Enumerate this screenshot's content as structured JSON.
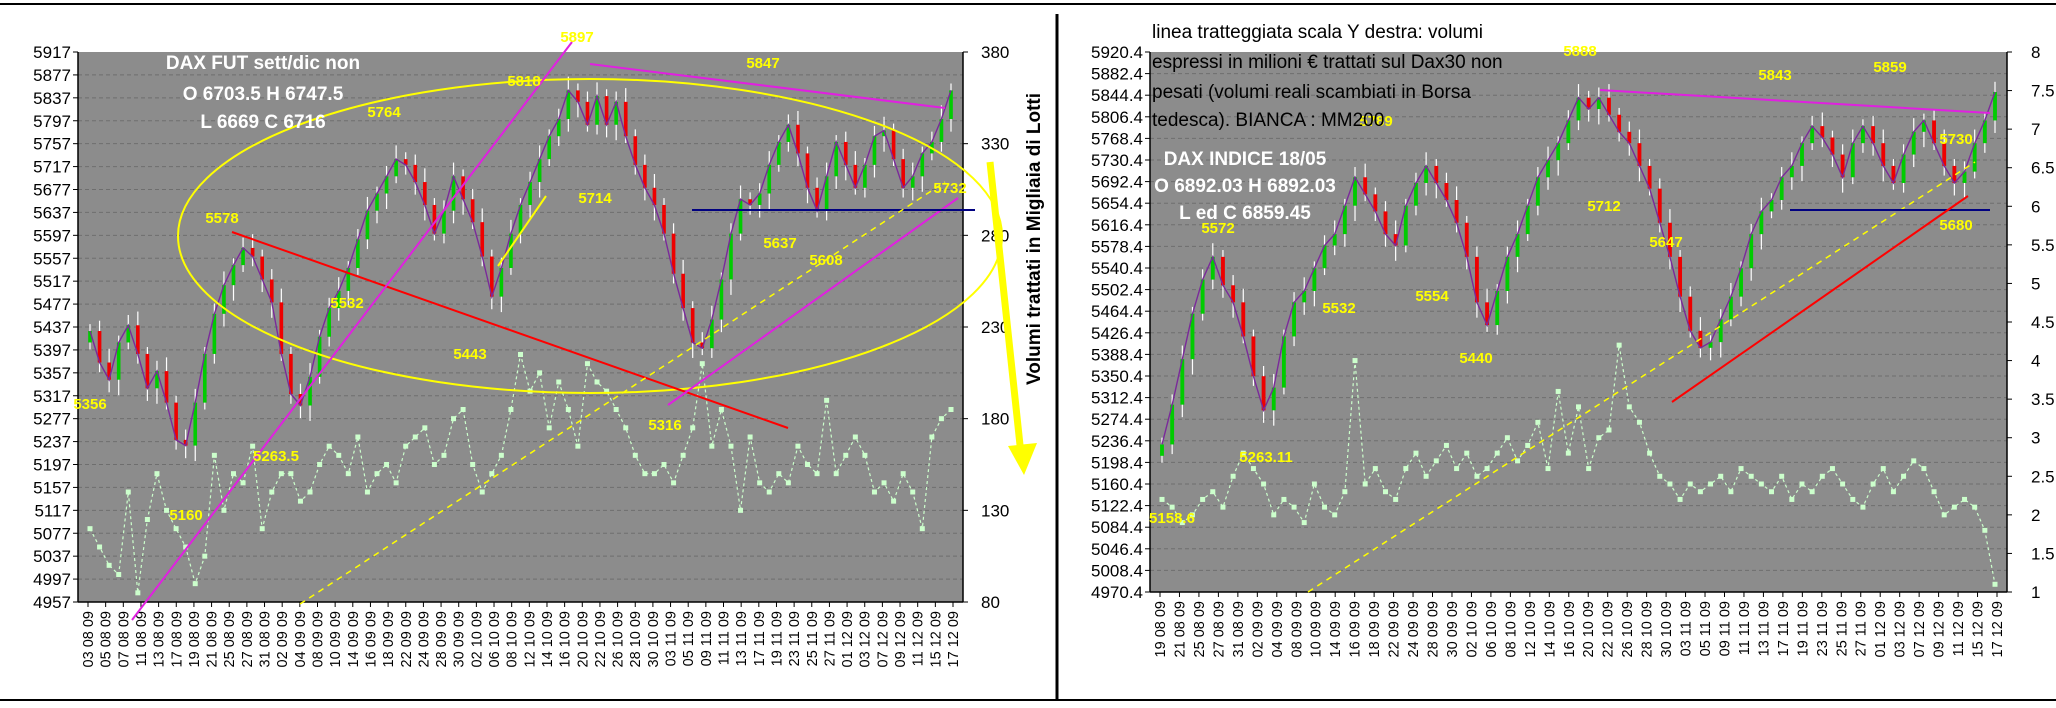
{
  "colors": {
    "plot_bg": "#8c8c8c",
    "up_candle": "#00cc00",
    "down_candle": "#ee0000",
    "wick": "#ffffff",
    "volume": "#ccffcc",
    "annotation": "#ffff00",
    "trend_red": "#ff0000",
    "trend_magenta": "#e020e0",
    "support_navy": "#000080",
    "ellipse": "#ffff00"
  },
  "left": {
    "info_lines": [
      "DAX FUT sett/dic non",
      "O 6703.5 H 6747.5",
      "L 6669  C 6716"
    ],
    "right_axis_label": "Volumi trattati in Migliaia di Lotti",
    "yticks": [
      "5917",
      "5877",
      "5837",
      "5797",
      "5757",
      "5717",
      "5677",
      "5637",
      "5597",
      "5557",
      "5517",
      "5477",
      "5437",
      "5397",
      "5357",
      "5317",
      "5277",
      "5237",
      "5197",
      "5157",
      "5117",
      "5077",
      "5037",
      "4997",
      "4957"
    ],
    "rticks": [
      "380",
      "330",
      "280",
      "230",
      "180",
      "130",
      "80"
    ],
    "xticks": [
      "03 08 09",
      "05 08 09",
      "07 08 09",
      "11 08 09",
      "13 08 09",
      "17 08 09",
      "19 08 09",
      "21 08 09",
      "25 08 09",
      "27 08 09",
      "31 08 09",
      "02 09 09",
      "04 09 09",
      "08 09 09",
      "10 09 09",
      "14 09 09",
      "16 09 09",
      "18 09 09",
      "22 09 09",
      "24 09 09",
      "28 09 09",
      "30 09 09",
      "02 10 09",
      "06 10 09",
      "08 10 09",
      "12 10 09",
      "14 10 09",
      "16 10 09",
      "20 10 09",
      "22 10 09",
      "26 10 09",
      "28 10 09",
      "30 10 09",
      "03 11 09",
      "05 11 09",
      "09 11 09",
      "11 11 09",
      "13 11 09",
      "17 11 09",
      "19 11 09",
      "23 11 09",
      "25 11 09",
      "27 11 09",
      "01 12 09",
      "03 12 09",
      "07 12 09",
      "09 12 09",
      "11 12 09",
      "15 12 09",
      "17 12 09"
    ],
    "annotations": [
      "5897",
      "5818",
      "5764",
      "5578",
      "5532",
      "5443",
      "5356",
      "5160",
      "5263.5",
      "5714",
      "5316",
      "5847",
      "5637",
      "5608",
      "5732"
    ]
  },
  "right": {
    "note_lines": [
      "linea tratteggiata scala Y destra: volumi",
      "espressi in milioni €  trattati sul Dax30 non",
      "pesati (volumi reali scambiati in Borsa",
      "tedesca). BIANCA : MM200"
    ],
    "info_lines": [
      "DAX INDICE 18/05",
      "O 6892.03 H 6892.03",
      "L ed C 6859.45"
    ],
    "yticks": [
      "5920.4",
      "5882.4",
      "5844.4",
      "5806.4",
      "5768.4",
      "5730.4",
      "5692.4",
      "5654.4",
      "5616.4",
      "5578.4",
      "5540.4",
      "5502.4",
      "5464.4",
      "5426.4",
      "5388.4",
      "5350.4",
      "5312.4",
      "5274.4",
      "5236.4",
      "5198.4",
      "5160.4",
      "5122.4",
      "5084.4",
      "5046.4",
      "5008.4",
      "4970.4"
    ],
    "rticks": [
      "8",
      "7.5",
      "7",
      "6.5",
      "6",
      "5.5",
      "5",
      "4.5",
      "4",
      "3.5",
      "3",
      "2.5",
      "2",
      "1.5",
      "1"
    ],
    "xticks": [
      "19 08 09",
      "21 08 09",
      "25 08 09",
      "27 08 09",
      "31 08 09",
      "02 09 09",
      "04 09 09",
      "08 09 09",
      "10 09 09",
      "14 09 09",
      "16 09 09",
      "18 09 09",
      "22 09 09",
      "24 09 09",
      "28 09 09",
      "30 09 09",
      "02 10 09",
      "06 10 09",
      "08 10 09",
      "12 10 09",
      "14 10 09",
      "16 10 09",
      "20 10 09",
      "22 10 09",
      "26 10 09",
      "28 10 09",
      "30 10 09",
      "03 11 09",
      "05 11 09",
      "09 11 09",
      "11 11 09",
      "13 11 09",
      "17 11 09",
      "19 11 09",
      "23 11 09",
      "25 11 09",
      "27 11 09",
      "01 12 09",
      "03 12 09",
      "07 12 09",
      "09 12 09",
      "11 12 09",
      "15 12 09",
      "17 12 09"
    ],
    "annotations": [
      "5888",
      "5843",
      "5859",
      "5789",
      "5730",
      "5712",
      "5647",
      "5680",
      "5572",
      "5554",
      "5532",
      "5440",
      "5263.11",
      "5158.6"
    ]
  },
  "chart_data": [
    {
      "type": "candlestick",
      "title": "DAX FUT sett/dic non",
      "ylabel_right": "Volumi trattati in Migliaia di Lotti",
      "ylim": [
        4957,
        5917
      ],
      "ylim_right": [
        80,
        380
      ],
      "close": [
        5430,
        5375,
        5345,
        5410,
        5440,
        5390,
        5330,
        5360,
        5305,
        5240,
        5230,
        5305,
        5390,
        5460,
        5510,
        5545,
        5575,
        5560,
        5520,
        5480,
        5390,
        5320,
        5300,
        5350,
        5420,
        5470,
        5500,
        5540,
        5590,
        5640,
        5670,
        5700,
        5730,
        5720,
        5690,
        5650,
        5600,
        5640,
        5700,
        5660,
        5620,
        5560,
        5490,
        5540,
        5600,
        5650,
        5690,
        5730,
        5770,
        5800,
        5850,
        5830,
        5790,
        5840,
        5790,
        5830,
        5770,
        5720,
        5680,
        5650,
        5600,
        5530,
        5470,
        5410,
        5400,
        5450,
        5520,
        5600,
        5660,
        5650,
        5670,
        5720,
        5760,
        5790,
        5740,
        5680,
        5640,
        5700,
        5760,
        5720,
        5680,
        5720,
        5770,
        5780,
        5730,
        5680,
        5700,
        5740,
        5760,
        5800,
        5850
      ],
      "volume": [
        120,
        110,
        100,
        95,
        140,
        85,
        125,
        150,
        130,
        120,
        110,
        90,
        105,
        160,
        130,
        150,
        145,
        165,
        120,
        140,
        150,
        150,
        135,
        140,
        155,
        165,
        160,
        150,
        170,
        140,
        150,
        155,
        145,
        165,
        170,
        175,
        155,
        160,
        180,
        185,
        155,
        140,
        150,
        160,
        185,
        215,
        195,
        205,
        175,
        200,
        185,
        165,
        210,
        200,
        195,
        185,
        175,
        160,
        150,
        150,
        155,
        145,
        160,
        175,
        210,
        165,
        185,
        165,
        130,
        170,
        145,
        140,
        150,
        145,
        165,
        155,
        150,
        190,
        150,
        160,
        170,
        160,
        140,
        145,
        135,
        150,
        140,
        120,
        170,
        180,
        185
      ],
      "key_levels": [
        5897,
        5818,
        5764,
        5578,
        5532,
        5443,
        5356,
        5160,
        5263.5,
        5714,
        5316,
        5847,
        5637,
        5608,
        5732
      ]
    },
    {
      "type": "candlestick",
      "title": "DAX INDICE 18/05",
      "ylim": [
        4970.4,
        5920.4
      ],
      "ylim_right": [
        1,
        8
      ],
      "close": [
        5230,
        5300,
        5380,
        5460,
        5520,
        5560,
        5510,
        5480,
        5420,
        5350,
        5290,
        5330,
        5420,
        5480,
        5500,
        5540,
        5580,
        5600,
        5650,
        5700,
        5670,
        5640,
        5600,
        5580,
        5650,
        5690,
        5720,
        5690,
        5660,
        5620,
        5560,
        5480,
        5440,
        5500,
        5560,
        5600,
        5650,
        5700,
        5730,
        5760,
        5800,
        5840,
        5820,
        5840,
        5810,
        5780,
        5760,
        5720,
        5680,
        5620,
        5560,
        5490,
        5430,
        5400,
        5410,
        5450,
        5490,
        5540,
        5600,
        5640,
        5660,
        5700,
        5720,
        5760,
        5790,
        5770,
        5740,
        5700,
        5760,
        5790,
        5760,
        5720,
        5690,
        5740,
        5780,
        5800,
        5760,
        5720,
        5690,
        5710,
        5760,
        5800,
        5850
      ],
      "volume": [
        2.2,
        2.1,
        1.9,
        2.0,
        2.2,
        2.3,
        2.1,
        2.5,
        2.8,
        2.6,
        2.4,
        2.0,
        2.2,
        2.1,
        1.9,
        2.4,
        2.1,
        2.0,
        2.3,
        4.0,
        2.4,
        2.6,
        2.3,
        2.2,
        2.6,
        2.8,
        2.5,
        2.7,
        2.9,
        2.6,
        2.8,
        2.5,
        2.6,
        2.8,
        3.0,
        2.7,
        2.9,
        3.2,
        2.6,
        3.6,
        2.8,
        3.4,
        2.6,
        3.0,
        3.1,
        4.2,
        3.4,
        3.2,
        2.8,
        2.5,
        2.4,
        2.2,
        2.4,
        2.3,
        2.4,
        2.5,
        2.3,
        2.6,
        2.5,
        2.4,
        2.3,
        2.5,
        2.2,
        2.4,
        2.3,
        2.5,
        2.6,
        2.4,
        2.2,
        2.1,
        2.4,
        2.6,
        2.3,
        2.5,
        2.7,
        2.6,
        2.3,
        2.0,
        2.1,
        2.2,
        2.1,
        1.8,
        1.1
      ],
      "key_levels": [
        5888,
        5843,
        5859,
        5789,
        5730,
        5712,
        5647,
        5680,
        5572,
        5554,
        5532,
        5440,
        5263.11,
        5158.6
      ]
    }
  ]
}
